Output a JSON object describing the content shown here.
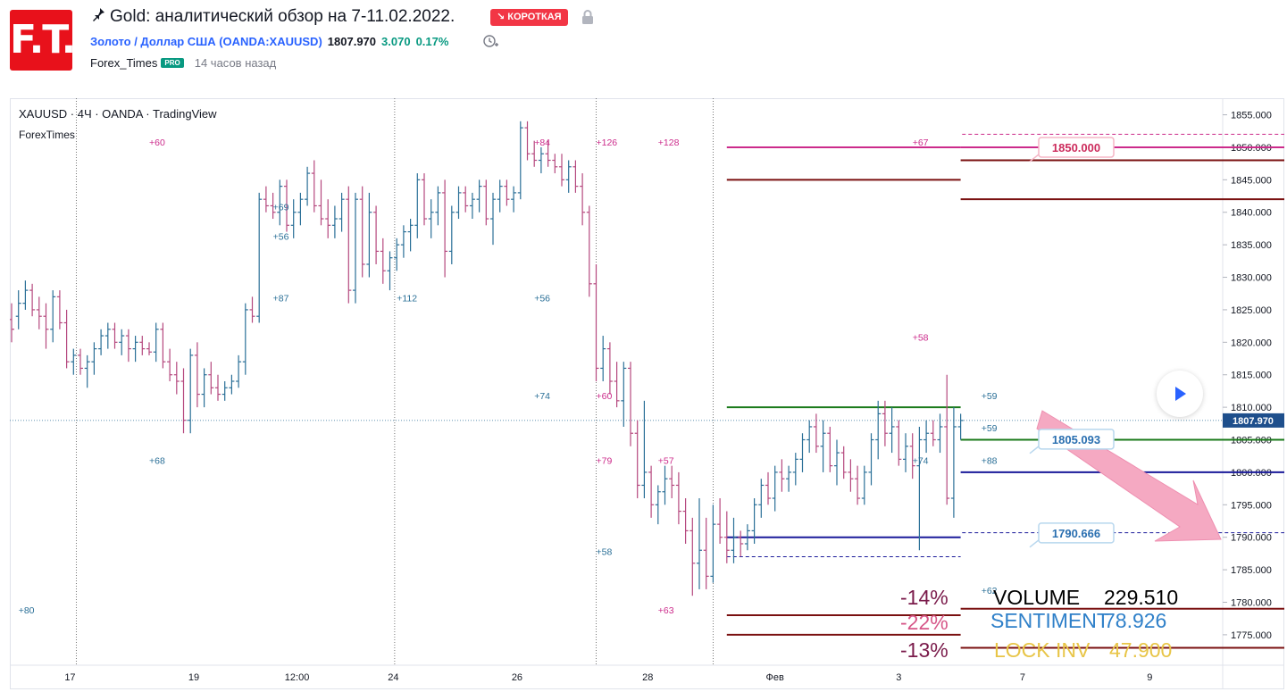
{
  "header": {
    "logo_text": "F.T.",
    "pin_icon": "pin-icon",
    "title": "Gold: аналитический обзор на 7-11.02.2022.",
    "badge": "↘ КОРОТКАЯ",
    "lock_icon": "lock-icon",
    "symbol_name": "Золото / Доллар США (OANDA:XAUUSD)",
    "symbol_price": "1807.970",
    "symbol_change": "3.070",
    "symbol_change_pct": "0.17%",
    "clock_icon": "clock-add-icon",
    "author": "Forex_Times",
    "author_badge": "PRO",
    "time_ago": "14 часов назад"
  },
  "chart_overlay": {
    "main_label": "XAUUSD · 4Ч · OANDA · TradingView",
    "sub_label": "ForexTimes",
    "play_icon": "play-icon"
  },
  "stats": {
    "pct1": "-14%",
    "pct2": "-22%",
    "pct3": "-13%",
    "volume_label": "VOLUME",
    "volume_value": "229.510",
    "sentiment_label": "SENTIMENT",
    "sentiment_value": "78.926",
    "lockinv_label": "LOCK INV",
    "lockinv_value": "47.900"
  },
  "chart_data": {
    "type": "bar",
    "title": "",
    "xlabel": "",
    "ylabel": "",
    "ylim": [
      1771,
      1857
    ],
    "y_ticks": [
      1775,
      1780,
      1785,
      1790,
      1795,
      1800,
      1805,
      1810,
      1815,
      1820,
      1825,
      1830,
      1835,
      1840,
      1845,
      1850,
      1855
    ],
    "x_ticks": [
      "17",
      "19",
      "12:00",
      "24",
      "26",
      "28",
      "Фев",
      "3",
      "7",
      "9"
    ],
    "current_price": 1807.97,
    "colors": {
      "up": "#2a6f97",
      "down": "#b5487e",
      "green": "#1a7a1a",
      "navy": "#1a1a9a",
      "maroon": "#7a1010",
      "magenta": "#cc2b8b",
      "arrow": "#f5a9c2"
    },
    "callouts": [
      {
        "label": "1850.000",
        "price": 1850.0,
        "color": "#cc2b5c"
      },
      {
        "label": "1805.093",
        "price": 1805.093,
        "color": "#2a6fb0"
      },
      {
        "label": "1790.666",
        "price": 1790.666,
        "color": "#2a6fb0"
      }
    ],
    "candles": [
      [
        0,
        1823.5,
        1826,
        1820,
        1822
      ],
      [
        1,
        1824,
        1828,
        1822,
        1826
      ],
      [
        2,
        1826,
        1829.5,
        1825,
        1828
      ],
      [
        3,
        1828,
        1829,
        1824,
        1825
      ],
      [
        4,
        1825,
        1827,
        1822,
        1824
      ],
      [
        5,
        1824,
        1826,
        1819,
        1822
      ],
      [
        6,
        1822,
        1828,
        1820,
        1827
      ],
      [
        7,
        1827,
        1828,
        1822,
        1823
      ],
      [
        8,
        1823,
        1825,
        1816,
        1817
      ],
      [
        9,
        1817,
        1819,
        1815,
        1818
      ],
      [
        10,
        1818,
        1819,
        1815,
        1816
      ],
      [
        11,
        1816,
        1818,
        1813,
        1817
      ],
      [
        12,
        1817,
        1820,
        1815,
        1819
      ],
      [
        13,
        1819,
        1822,
        1818,
        1821
      ],
      [
        14,
        1821,
        1823,
        1819,
        1822
      ],
      [
        15,
        1822,
        1823,
        1819,
        1820
      ],
      [
        16,
        1820,
        1822,
        1818,
        1821
      ],
      [
        17,
        1821,
        1822,
        1817,
        1819
      ],
      [
        18,
        1819,
        1821,
        1817,
        1820
      ],
      [
        19,
        1820,
        1821,
        1818,
        1819
      ],
      [
        20,
        1819,
        1820,
        1818,
        1818.5
      ],
      [
        21,
        1818.5,
        1823,
        1817,
        1822
      ],
      [
        22,
        1822,
        1823,
        1816,
        1817
      ],
      [
        23,
        1817,
        1819,
        1814,
        1815
      ],
      [
        24,
        1815,
        1817,
        1812,
        1814
      ],
      [
        25,
        1814,
        1816,
        1806,
        1808
      ],
      [
        26,
        1808,
        1819,
        1806,
        1818
      ],
      [
        27,
        1818,
        1820,
        1810,
        1812
      ],
      [
        28,
        1812,
        1816,
        1810,
        1815
      ],
      [
        29,
        1815,
        1817,
        1812,
        1813
      ],
      [
        30,
        1813,
        1815,
        1811,
        1812
      ],
      [
        31,
        1812,
        1814,
        1811,
        1813
      ],
      [
        32,
        1813,
        1815,
        1812,
        1814
      ],
      [
        33,
        1814,
        1818,
        1813,
        1817
      ],
      [
        34,
        1817,
        1826,
        1815,
        1825
      ],
      [
        35,
        1825,
        1827,
        1823,
        1824
      ],
      [
        36,
        1824,
        1843,
        1823,
        1842
      ],
      [
        37,
        1842,
        1844,
        1840,
        1841
      ],
      [
        38,
        1841,
        1843,
        1839,
        1840
      ],
      [
        39,
        1840,
        1845,
        1838,
        1844
      ],
      [
        40,
        1844,
        1845,
        1837,
        1838
      ],
      [
        41,
        1838,
        1842,
        1836,
        1840
      ],
      [
        42,
        1840,
        1843,
        1838,
        1842
      ],
      [
        43,
        1842,
        1847,
        1841,
        1846
      ],
      [
        44,
        1846,
        1848,
        1840,
        1841
      ],
      [
        45,
        1841,
        1845,
        1838,
        1839
      ],
      [
        46,
        1839,
        1842,
        1836,
        1838
      ],
      [
        47,
        1838,
        1841,
        1836,
        1839
      ],
      [
        48,
        1839,
        1843,
        1837,
        1842
      ],
      [
        49,
        1842,
        1844,
        1826,
        1828
      ],
      [
        50,
        1828,
        1843,
        1826,
        1842
      ],
      [
        51,
        1842,
        1844,
        1830,
        1832
      ],
      [
        52,
        1832,
        1843,
        1830,
        1840
      ],
      [
        53,
        1840,
        1841,
        1832,
        1834
      ],
      [
        54,
        1834,
        1836,
        1829,
        1831
      ],
      [
        55,
        1831,
        1834,
        1828,
        1833
      ],
      [
        56,
        1833,
        1836,
        1831,
        1835
      ],
      [
        57,
        1835,
        1838,
        1833,
        1837
      ],
      [
        58,
        1837,
        1839,
        1834,
        1838
      ],
      [
        59,
        1838,
        1846,
        1836,
        1845
      ],
      [
        60,
        1845,
        1846,
        1838,
        1839
      ],
      [
        61,
        1839,
        1842,
        1836,
        1840
      ],
      [
        62,
        1840,
        1844,
        1838,
        1843
      ],
      [
        63,
        1843,
        1845,
        1830,
        1834
      ],
      [
        64,
        1834,
        1841,
        1832,
        1840
      ],
      [
        65,
        1840,
        1844,
        1839,
        1843
      ],
      [
        66,
        1843,
        1844,
        1840,
        1841
      ],
      [
        67,
        1841,
        1843,
        1839,
        1842
      ],
      [
        68,
        1842,
        1845,
        1840,
        1844
      ],
      [
        69,
        1844,
        1845,
        1838,
        1839
      ],
      [
        70,
        1839,
        1843,
        1835,
        1842
      ],
      [
        71,
        1842,
        1845,
        1840,
        1844
      ],
      [
        72,
        1844,
        1845,
        1841,
        1842
      ],
      [
        73,
        1842,
        1844,
        1840,
        1843
      ],
      [
        74,
        1843,
        1854,
        1842,
        1853
      ],
      [
        75,
        1853,
        1854,
        1848,
        1849
      ],
      [
        76,
        1849,
        1851,
        1847,
        1848
      ],
      [
        77,
        1848,
        1850,
        1846,
        1849
      ],
      [
        78,
        1849,
        1851,
        1847,
        1848
      ],
      [
        79,
        1848,
        1849,
        1846,
        1847
      ],
      [
        80,
        1847,
        1849,
        1844,
        1845
      ],
      [
        81,
        1845,
        1848,
        1843,
        1847
      ],
      [
        82,
        1847,
        1848,
        1843,
        1844
      ],
      [
        83,
        1844,
        1846,
        1838,
        1840
      ],
      [
        84,
        1840,
        1841,
        1827,
        1829
      ],
      [
        85,
        1829,
        1832,
        1814,
        1816
      ],
      [
        86,
        1816,
        1821,
        1814,
        1819
      ],
      [
        87,
        1819,
        1820,
        1812,
        1814
      ],
      [
        88,
        1814,
        1817,
        1810,
        1811
      ],
      [
        89,
        1811,
        1817,
        1807,
        1816
      ],
      [
        90,
        1816,
        1817,
        1804,
        1806
      ],
      [
        91,
        1806,
        1808,
        1796,
        1798
      ],
      [
        92,
        1798,
        1811,
        1796,
        1800
      ],
      [
        93,
        1800,
        1801,
        1793,
        1795
      ],
      [
        94,
        1795,
        1798,
        1792,
        1797
      ],
      [
        95,
        1797,
        1801,
        1795,
        1799
      ],
      [
        96,
        1799,
        1801,
        1796,
        1798
      ],
      [
        97,
        1798,
        1800,
        1792,
        1794
      ],
      [
        98,
        1794,
        1796,
        1789,
        1791
      ],
      [
        99,
        1791,
        1793,
        1781,
        1786
      ],
      [
        100,
        1786,
        1796,
        1782,
        1788
      ],
      [
        101,
        1788,
        1793,
        1782,
        1784
      ],
      [
        102,
        1784,
        1795,
        1783,
        1792
      ],
      [
        103,
        1792,
        1796,
        1789,
        1790
      ],
      [
        104,
        1790,
        1794,
        1786,
        1788
      ],
      [
        105,
        1788,
        1793,
        1786,
        1790
      ],
      [
        106,
        1790,
        1791,
        1787,
        1789
      ],
      [
        107,
        1789,
        1792,
        1788,
        1791
      ],
      [
        108,
        1791,
        1796,
        1789,
        1795
      ],
      [
        109,
        1795,
        1799,
        1793,
        1798
      ],
      [
        110,
        1798,
        1800,
        1795,
        1796
      ],
      [
        111,
        1796,
        1801,
        1794,
        1800
      ],
      [
        112,
        1800,
        1802,
        1797,
        1799
      ],
      [
        113,
        1799,
        1801,
        1797,
        1800
      ],
      [
        114,
        1800,
        1803,
        1798,
        1802
      ],
      [
        115,
        1802,
        1806,
        1800,
        1805
      ],
      [
        116,
        1805,
        1808,
        1803,
        1807
      ],
      [
        117,
        1807,
        1809,
        1803,
        1804
      ],
      [
        118,
        1804,
        1808,
        1800,
        1806
      ],
      [
        119,
        1806,
        1807,
        1800,
        1801
      ],
      [
        120,
        1801,
        1805,
        1798,
        1803
      ],
      [
        121,
        1803,
        1804,
        1799,
        1800
      ],
      [
        122,
        1800,
        1802,
        1797,
        1799
      ],
      [
        123,
        1799,
        1801,
        1795,
        1796
      ],
      [
        124,
        1796,
        1801,
        1795,
        1800
      ],
      [
        125,
        1800,
        1806,
        1798,
        1805
      ],
      [
        126,
        1805,
        1811,
        1802,
        1809
      ],
      [
        127,
        1809,
        1811,
        1804,
        1806
      ],
      [
        128,
        1806,
        1810,
        1803,
        1807
      ],
      [
        129,
        1807,
        1808,
        1801,
        1802
      ],
      [
        130,
        1802,
        1806,
        1800,
        1804
      ],
      [
        131,
        1804,
        1806,
        1799,
        1801
      ],
      [
        132,
        1801,
        1807,
        1788,
        1805
      ],
      [
        133,
        1805,
        1808,
        1803,
        1806
      ],
      [
        134,
        1806,
        1808,
        1804,
        1805
      ],
      [
        135,
        1805,
        1809,
        1803,
        1807
      ],
      [
        136,
        1807,
        1815,
        1795,
        1796
      ],
      [
        137,
        1796,
        1810,
        1793,
        1807
      ],
      [
        138,
        1807,
        1809,
        1805,
        1807.97
      ]
    ],
    "levels": [
      [
        1836,
        1850,
        1850,
        "magenta"
      ],
      [
        1836,
        1850,
        1852,
        "magenta",
        "dash"
      ],
      [
        1836,
        1850,
        1848,
        "maroon"
      ],
      [
        1836,
        1850,
        1842,
        "maroon"
      ],
      [
        1836,
        1850,
        1805,
        "green"
      ],
      [
        1836,
        1850,
        1800,
        "navy"
      ],
      [
        1836,
        1850,
        1790.7,
        "navy",
        "dash"
      ],
      [
        1836,
        1850,
        1779,
        "maroon"
      ],
      [
        1836,
        1850,
        1773,
        "maroon"
      ],
      [
        1813,
        1836,
        1810,
        "green"
      ],
      [
        1813,
        1836,
        1845,
        "maroon"
      ],
      [
        1813,
        1836,
        1790,
        "navy"
      ],
      [
        1813,
        1836,
        1787,
        "navy",
        "dash"
      ],
      [
        1813,
        1836,
        1778,
        "maroon"
      ],
      [
        1813,
        1836,
        1775,
        "maroon"
      ],
      [
        1813,
        1836,
        1850,
        "magenta"
      ]
    ],
    "annotations": [
      "+60",
      "+69",
      "+56",
      "+87",
      "+68",
      "+80",
      "+112",
      "+56",
      "+84",
      "+126",
      "+128",
      "+74",
      "+60",
      "+79",
      "+57",
      "+58",
      "+63",
      "+67",
      "+58",
      "+74",
      "+59",
      "+59",
      "+88",
      "+62"
    ]
  }
}
